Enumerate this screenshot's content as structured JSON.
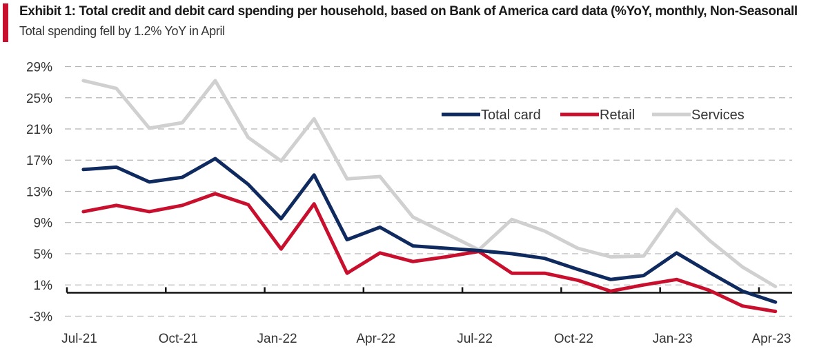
{
  "header": {
    "title": "Exhibit 1: Total credit and debit card spending per household, based on Bank of America card data (%YoY, monthly, Non-Seasonall",
    "subtitle": "Total spending fell by 1.2% YoY in April",
    "accent_color": "#c8102e"
  },
  "chart_data": {
    "type": "line",
    "title": "Exhibit 1: Total credit and debit card spending per household, based on Bank of America card data (%YoY, monthly, Non-Seasonall",
    "subtitle": "Total spending fell by 1.2% YoY in April",
    "xlabel": "",
    "ylabel": "",
    "ylim": [
      -3,
      29
    ],
    "yticks": [
      29,
      25,
      21,
      17,
      13,
      9,
      5,
      1,
      -3
    ],
    "ytick_labels": [
      "29%",
      "25%",
      "21%",
      "17%",
      "13%",
      "9%",
      "5%",
      "1%",
      "-3%"
    ],
    "xtick_labels": [
      "Jul-21",
      "Oct-21",
      "Jan-22",
      "Apr-22",
      "Jul-22",
      "Oct-22",
      "Jan-23",
      "Apr-23"
    ],
    "grid": "horizontal dashed",
    "legend_position": "top-right",
    "x": [
      "Jul-21",
      "Aug-21",
      "Sep-21",
      "Oct-21",
      "Nov-21",
      "Dec-21",
      "Jan-22",
      "Feb-22",
      "Mar-22",
      "Apr-22",
      "May-22",
      "Jun-22",
      "Jul-22",
      "Aug-22",
      "Sep-22",
      "Oct-22",
      "Nov-22",
      "Dec-22",
      "Jan-23",
      "Feb-23",
      "Mar-23",
      "Apr-23"
    ],
    "series": [
      {
        "name": "Total card",
        "color": "#0f2a5f",
        "values": [
          15.8,
          16.1,
          14.2,
          14.8,
          17.2,
          13.9,
          9.5,
          15.1,
          6.8,
          8.4,
          6.0,
          5.7,
          5.4,
          5.0,
          4.4,
          3.0,
          1.7,
          2.2,
          5.1,
          2.6,
          0.2,
          -1.2
        ]
      },
      {
        "name": "Retail",
        "color": "#c8102e",
        "values": [
          10.4,
          11.2,
          10.4,
          11.2,
          12.7,
          11.3,
          5.6,
          11.4,
          2.5,
          5.1,
          4.0,
          4.6,
          5.3,
          2.5,
          2.5,
          1.6,
          0.2,
          1.0,
          1.7,
          0.3,
          -1.7,
          -2.4
        ]
      },
      {
        "name": "Services",
        "color": "#d0d0d0",
        "values": [
          27.2,
          26.2,
          21.1,
          21.8,
          27.2,
          19.9,
          16.9,
          22.3,
          14.6,
          14.9,
          9.7,
          7.6,
          5.5,
          9.4,
          7.9,
          5.7,
          4.6,
          4.7,
          10.7,
          6.7,
          3.3,
          0.8
        ]
      }
    ]
  }
}
